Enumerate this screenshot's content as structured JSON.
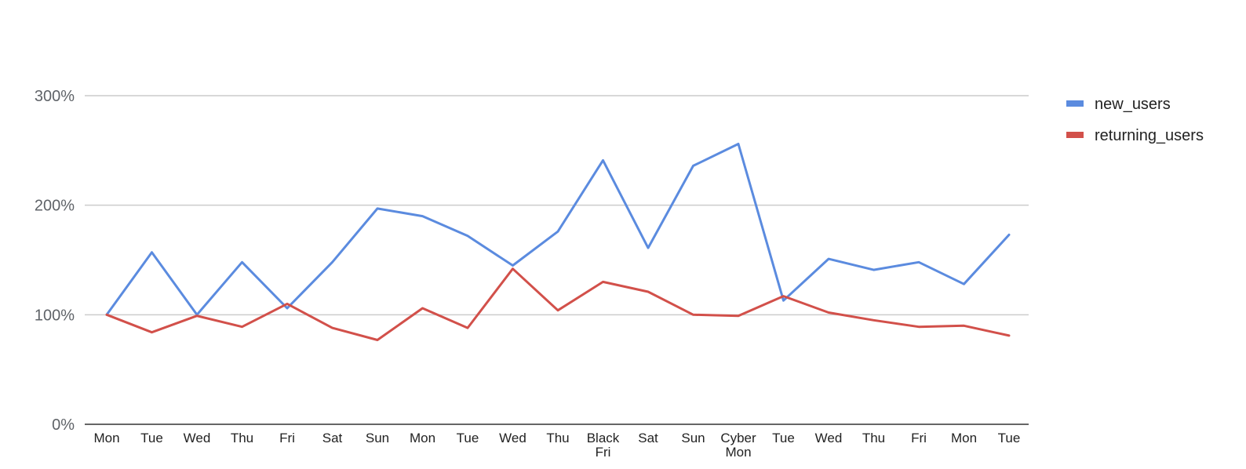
{
  "chart_data": {
    "type": "line",
    "categories": [
      "Mon",
      "Tue",
      "Wed",
      "Thu",
      "Fri",
      "Sat",
      "Sun",
      "Mon",
      "Tue",
      "Wed",
      "Thu",
      "Black Fri",
      "Sat",
      "Sun",
      "Cyber Mon",
      "Tue",
      "Wed",
      "Thu",
      "Fri",
      "Mon",
      "Tue"
    ],
    "series": [
      {
        "name": "new_users",
        "color": "#5b8bdf",
        "values": [
          100,
          157,
          100,
          148,
          106,
          148,
          197,
          190,
          172,
          145,
          176,
          241,
          161,
          236,
          256,
          113,
          151,
          141,
          148,
          128,
          173
        ]
      },
      {
        "name": "returning_users",
        "color": "#d2504a",
        "values": [
          100,
          84,
          99,
          89,
          110,
          88,
          77,
          106,
          88,
          142,
          104,
          130,
          121,
          100,
          99,
          117,
          102,
          95,
          89,
          90,
          81
        ]
      }
    ],
    "y_ticks": [
      "0%",
      "100%",
      "200%",
      "300%"
    ],
    "y_tick_values": [
      0,
      100,
      200,
      300
    ],
    "ylim": [
      0,
      300
    ],
    "grid": true,
    "legend": "right"
  }
}
